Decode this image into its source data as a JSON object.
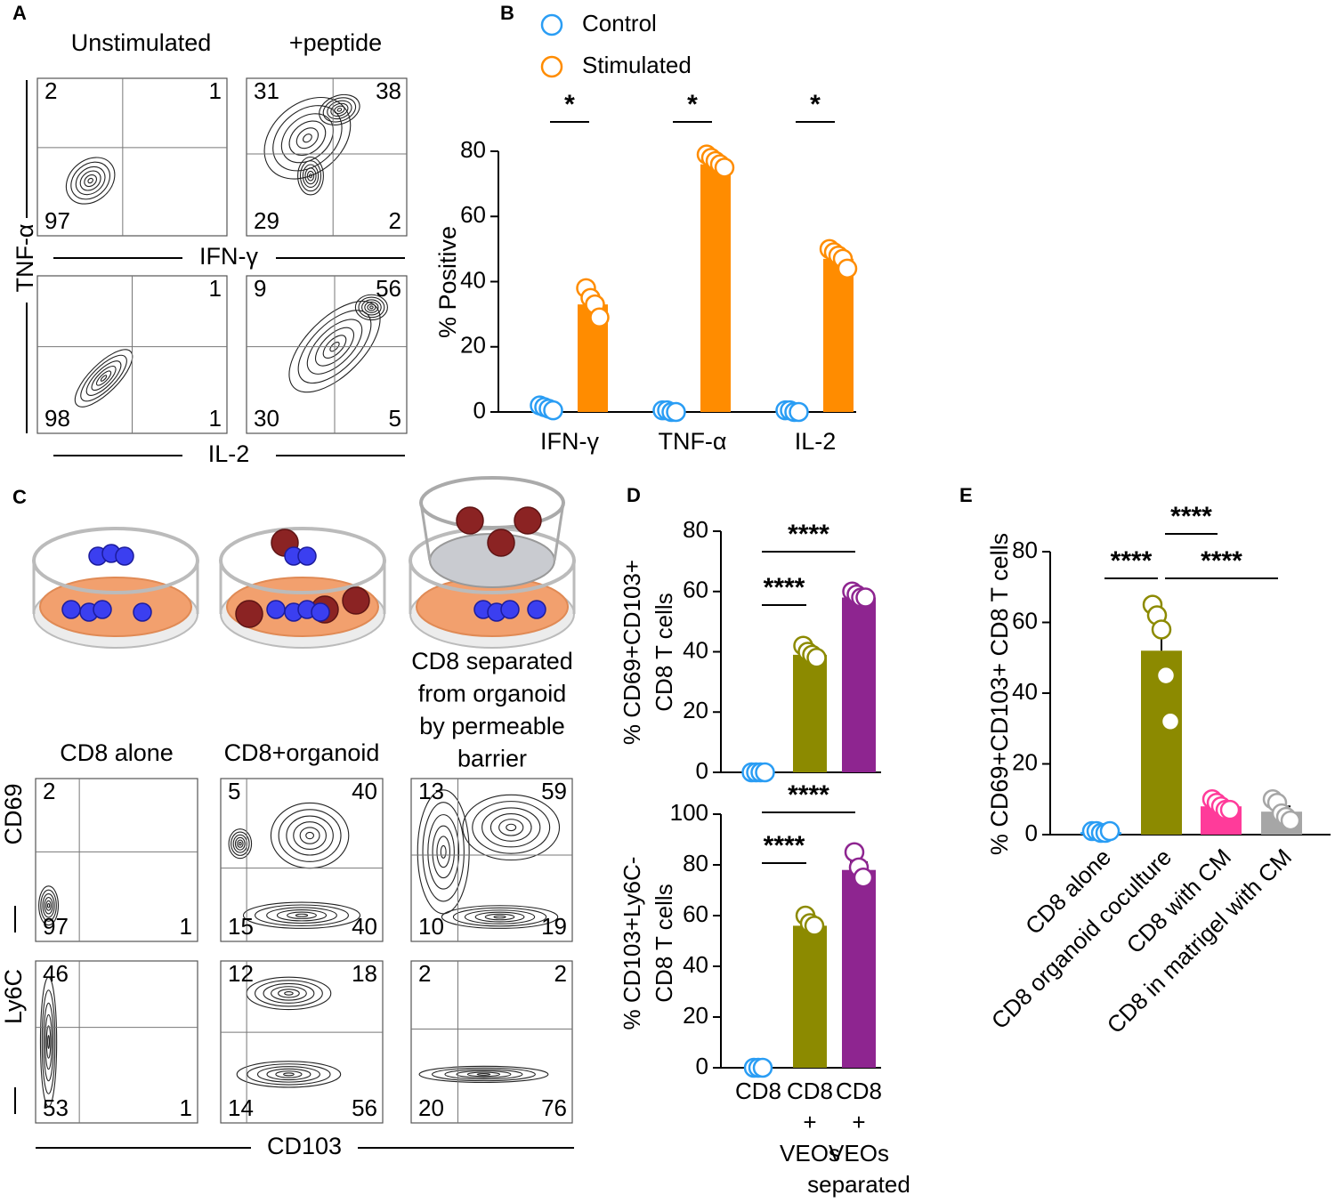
{
  "panel_labels": [
    "A",
    "B",
    "C",
    "D",
    "E"
  ],
  "flow_a": {
    "columns": [
      "Unstimulated",
      "+peptide"
    ],
    "y_label": "TNF-α",
    "rows": [
      {
        "x_label": "IFN-γ",
        "quadrants": [
          [
            2,
            1,
            97,
            null
          ],
          [
            31,
            38,
            29,
            2
          ]
        ]
      },
      {
        "x_label": "IL-2",
        "quadrants": [
          [
            null,
            1,
            98,
            1
          ],
          [
            9,
            56,
            30,
            5
          ]
        ]
      }
    ]
  },
  "diagram_c": {
    "caption": [
      "CD8 separated",
      "from organoid",
      "by permeable",
      "barrier"
    ]
  },
  "flow_c": {
    "columns": [
      "CD8 alone",
      "CD8+organoid"
    ],
    "x_label": "CD103",
    "rows": [
      {
        "y_label": "CD69",
        "quadrants": [
          [
            2,
            null,
            97,
            1
          ],
          [
            5,
            40,
            15,
            40
          ],
          [
            13,
            59,
            10,
            19
          ]
        ]
      },
      {
        "y_label": "Ly6C",
        "quadrants": [
          [
            46,
            null,
            53,
            1
          ],
          [
            12,
            18,
            14,
            56
          ],
          [
            2,
            2,
            20,
            76
          ]
        ]
      }
    ]
  },
  "chart_data": [
    {
      "type": "bar",
      "y_label": "% Positive",
      "categories": [
        "IFN-γ",
        "TNF-α",
        "IL-2"
      ],
      "ylim": [
        0,
        80
      ],
      "yticks": [
        0,
        20,
        40,
        60,
        80
      ],
      "series": [
        {
          "name": "Control",
          "color": "#2a9df4",
          "values": [
            1,
            0.3,
            0.3
          ],
          "points": [
            [
              2,
              1.5,
              1,
              0.5
            ],
            [
              0.5,
              0.5,
              0,
              0
            ],
            [
              0.5,
              0.5,
              0,
              0
            ]
          ]
        },
        {
          "name": "Stimulated",
          "color": "#ff8c00",
          "values": [
            33,
            76,
            47
          ],
          "points": [
            [
              38,
              35,
              33,
              29
            ],
            [
              79,
              78,
              77,
              76,
              75
            ],
            [
              50,
              49,
              48,
              47,
              44
            ]
          ]
        }
      ],
      "significance": [
        {
          "label": "*",
          "category": 0
        },
        {
          "label": "*",
          "category": 1
        },
        {
          "label": "*",
          "category": 2
        }
      ]
    },
    {
      "type": "bar",
      "y_label": [
        "% CD69+CD103+",
        "CD8 T cells"
      ],
      "categories": [
        null,
        null,
        null
      ],
      "ylim": [
        0,
        80
      ],
      "yticks": [
        0,
        20,
        40,
        60,
        80
      ],
      "colors": [
        "#2a9df4",
        "#8c8a00",
        "#8e2590"
      ],
      "values": [
        0,
        39,
        58
      ],
      "points": [
        [
          0,
          0,
          0,
          0
        ],
        [
          42,
          40,
          39,
          38
        ],
        [
          60,
          59,
          58,
          58
        ]
      ],
      "significance": [
        {
          "label": "****",
          "from": 0,
          "to": 1
        },
        {
          "label": "****",
          "from": 0,
          "to": 2
        }
      ]
    },
    {
      "type": "bar",
      "y_label": [
        "% CD103+Ly6C-",
        "CD8 T cells"
      ],
      "categories": [
        [
          "CD8"
        ],
        [
          "CD8",
          "+",
          "VEOs"
        ],
        [
          "CD8",
          "+",
          "VEOs",
          "separated"
        ]
      ],
      "ylim": [
        0,
        100
      ],
      "yticks": [
        0,
        20,
        40,
        60,
        80,
        100
      ],
      "colors": [
        "#2a9df4",
        "#8c8a00",
        "#8e2590"
      ],
      "values": [
        0,
        56,
        78
      ],
      "errors": [
        0,
        1,
        3
      ],
      "points": [
        [
          0,
          0,
          0
        ],
        [
          60,
          57,
          56
        ],
        [
          85,
          79,
          75
        ]
      ],
      "significance": [
        {
          "label": "****",
          "from": 0,
          "to": 1
        },
        {
          "label": "****",
          "from": 0,
          "to": 2
        }
      ]
    },
    {
      "type": "bar",
      "y_label": "% CD69+CD103+ CD8 T cells",
      "categories": [
        "CD8 alone",
        "CD8 organoid coculture",
        "CD8 with CM",
        "CD8 in matrigel with CM"
      ],
      "ylim": [
        0,
        80
      ],
      "yticks": [
        0,
        20,
        40,
        60,
        80
      ],
      "colors": [
        "#2a9df4",
        "#8c8a00",
        "#ff3b9a",
        "#a6a6a6"
      ],
      "values": [
        0.7,
        52,
        8,
        6.5
      ],
      "errors": [
        0.3,
        6.5,
        1,
        1.5
      ],
      "points": [
        [
          1,
          1,
          0.5,
          0.5,
          1
        ],
        [
          65,
          62,
          58,
          45,
          32
        ],
        [
          10,
          9,
          8,
          7,
          7
        ],
        [
          10,
          9,
          6,
          5,
          4
        ]
      ],
      "significance": [
        {
          "label": "****",
          "from": 0,
          "to": 1
        },
        {
          "label": "****",
          "from": 1,
          "to": 3
        },
        {
          "label": "****",
          "from": 1,
          "to": 2
        }
      ]
    }
  ]
}
